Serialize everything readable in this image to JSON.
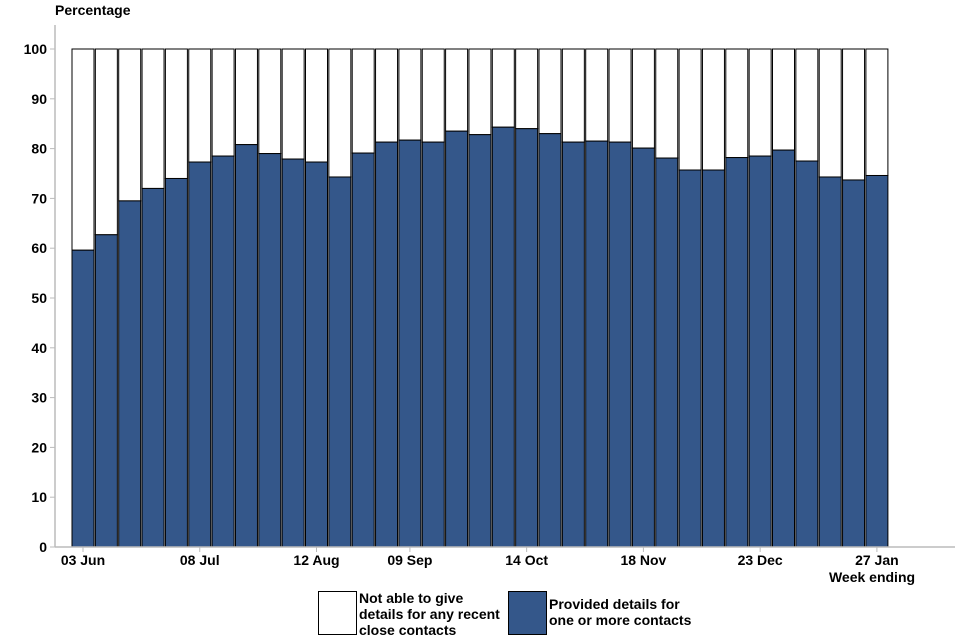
{
  "chart_data": {
    "type": "bar",
    "stacked": true,
    "ylabel": "Percentage",
    "xlabel": "Week ending",
    "ylim": [
      0,
      100
    ],
    "yticks": [
      0,
      10,
      20,
      30,
      40,
      50,
      60,
      70,
      80,
      90,
      100
    ],
    "xtick_labels": [
      {
        "bar": 0,
        "label": "03 Jun"
      },
      {
        "bar": 5,
        "label": "08 Jul"
      },
      {
        "bar": 10,
        "label": "12 Aug"
      },
      {
        "bar": 14,
        "label": "09 Sep"
      },
      {
        "bar": 19,
        "label": "14 Oct"
      },
      {
        "bar": 24,
        "label": "18 Nov"
      },
      {
        "bar": 29,
        "label": "23 Dec"
      },
      {
        "bar": 34,
        "label": "27 Jan"
      }
    ],
    "grid": false,
    "legend_position": "bottom",
    "series": [
      {
        "name": "Provided details for\n one or more contacts",
        "color": "#34578a",
        "values": [
          59.6,
          62.7,
          69.5,
          72.0,
          74.0,
          77.3,
          78.5,
          80.8,
          79.0,
          77.9,
          77.3,
          74.3,
          79.1,
          81.3,
          81.7,
          81.3,
          83.5,
          82.8,
          84.3,
          84.0,
          83.0,
          81.3,
          81.5,
          81.3,
          80.1,
          78.1,
          75.7,
          75.7,
          78.2,
          78.5,
          79.7,
          77.5,
          74.3,
          73.7,
          74.6
        ]
      },
      {
        "name": "Not able to give\n details for any recent\n close contacts",
        "color": "#ffffff",
        "values": "remainder to 100"
      }
    ]
  }
}
